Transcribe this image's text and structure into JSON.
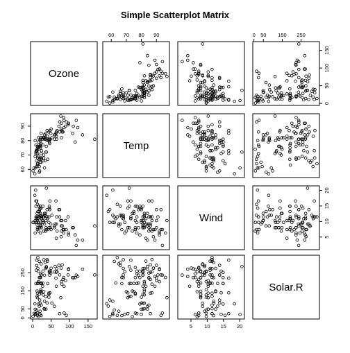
{
  "chart_data": {
    "type": "scatter",
    "title": "Simple Scatterplot Matrix",
    "variables": [
      "Ozone",
      "Temp",
      "Wind",
      "Solar.R"
    ],
    "ranges": {
      "Ozone": [
        1,
        168
      ],
      "Temp": [
        56,
        97
      ],
      "Wind": [
        1.7,
        20.7
      ],
      "Solar.R": [
        7,
        334
      ]
    },
    "ticks": {
      "Ozone": [
        0,
        50,
        100,
        150
      ],
      "Temp": [
        60,
        70,
        80,
        90
      ],
      "Wind": [
        5,
        10,
        15,
        20
      ],
      "Solar.R": [
        0,
        50,
        150,
        250
      ]
    },
    "tick_labels": {
      "Ozone": [
        "0",
        "50",
        "100",
        "150"
      ],
      "Temp": [
        "60",
        "70",
        "80",
        "90"
      ],
      "Wind": [
        "5",
        "10",
        "15",
        "20"
      ],
      "Solar.R": [
        "0",
        "50",
        "150",
        "250"
      ]
    },
    "grid": false,
    "marker": "open-circle",
    "rows": [
      [
        41,
        67,
        7.4,
        190
      ],
      [
        36,
        72,
        8.0,
        118
      ],
      [
        12,
        74,
        12.6,
        149
      ],
      [
        18,
        62,
        11.5,
        313
      ],
      [
        28,
        66,
        14.9,
        null
      ],
      [
        23,
        65,
        8.6,
        299
      ],
      [
        19,
        59,
        13.8,
        99
      ],
      [
        8,
        61,
        20.1,
        19
      ],
      [
        16,
        69,
        9.7,
        256
      ],
      [
        11,
        66,
        9.2,
        290
      ],
      [
        14,
        68,
        10.9,
        274
      ],
      [
        18,
        58,
        13.2,
        65
      ],
      [
        14,
        64,
        11.5,
        334
      ],
      [
        34,
        66,
        12.0,
        307
      ],
      [
        6,
        57,
        18.4,
        78
      ],
      [
        30,
        68,
        11.5,
        322
      ],
      [
        11,
        62,
        9.7,
        44
      ],
      [
        1,
        59,
        9.7,
        8
      ],
      [
        11,
        73,
        16.6,
        320
      ],
      [
        4,
        61,
        9.7,
        25
      ],
      [
        32,
        61,
        12.0,
        92
      ],
      [
        23,
        67,
        12.0,
        13
      ],
      [
        45,
        81,
        14.9,
        252
      ],
      [
        115,
        79,
        5.7,
        223
      ],
      [
        37,
        76,
        7.4,
        279
      ],
      [
        29,
        82,
        9.7,
        127
      ],
      [
        71,
        90,
        13.8,
        291
      ],
      [
        39,
        87,
        11.5,
        323
      ],
      [
        23,
        82,
        8.0,
        148
      ],
      [
        21,
        77,
        14.9,
        191
      ],
      [
        37,
        72,
        20.7,
        284
      ],
      [
        20,
        65,
        9.2,
        37
      ],
      [
        12,
        73,
        11.5,
        120
      ],
      [
        13,
        76,
        10.3,
        137
      ],
      [
        135,
        84,
        4.0,
        269
      ],
      [
        49,
        85,
        9.2,
        248
      ],
      [
        32,
        81,
        9.2,
        236
      ],
      [
        64,
        83,
        4.6,
        175
      ],
      [
        40,
        83,
        10.9,
        314
      ],
      [
        77,
        88,
        5.1,
        276
      ],
      [
        97,
        92,
        6.3,
        267
      ],
      [
        97,
        92,
        5.7,
        272
      ],
      [
        85,
        89,
        7.4,
        175
      ],
      [
        10,
        73,
        10.9,
        264
      ],
      [
        27,
        81,
        10.3,
        175
      ],
      [
        7,
        80,
        10.3,
        48
      ],
      [
        48,
        81,
        8.0,
        260
      ],
      [
        35,
        82,
        12.6,
        274
      ],
      [
        61,
        84,
        9.2,
        285
      ],
      [
        79,
        87,
        10.3,
        187
      ],
      [
        63,
        85,
        16.6,
        220
      ],
      [
        16,
        74,
        6.9,
        7
      ],
      [
        80,
        86,
        8.6,
        294
      ],
      [
        108,
        85,
        8.0,
        223
      ],
      [
        20,
        81,
        8.6,
        81
      ],
      [
        52,
        82,
        12.0,
        82
      ],
      [
        82,
        86,
        7.4,
        213
      ],
      [
        50,
        88,
        7.4,
        275
      ],
      [
        64,
        86,
        9.2,
        253
      ],
      [
        59,
        81,
        8.0,
        254
      ],
      [
        39,
        80,
        13.8,
        83
      ],
      [
        9,
        77,
        11.5,
        24
      ],
      [
        16,
        79,
        14.9,
        77
      ],
      [
        78,
        82,
        8.6,
        null
      ],
      [
        35,
        85,
        6.9,
        null
      ],
      [
        66,
        87,
        6.9,
        255
      ],
      [
        122,
        89,
        4.0,
        229
      ],
      [
        89,
        90,
        10.3,
        207
      ],
      [
        110,
        90,
        8.0,
        222
      ],
      [
        44,
        86,
        11.5,
        137
      ],
      [
        28,
        82,
        11.5,
        192
      ],
      [
        65,
        81,
        11.5,
        273
      ],
      [
        22,
        82,
        9.7,
        157
      ],
      [
        59,
        84,
        8.6,
        64
      ],
      [
        23,
        85,
        11.5,
        71
      ],
      [
        31,
        82,
        11.5,
        51
      ],
      [
        44,
        80,
        9.7,
        115
      ],
      [
        21,
        77,
        6.3,
        244
      ],
      [
        9,
        72,
        14.9,
        190
      ],
      [
        45,
        79,
        14.3,
        259
      ],
      [
        168,
        81,
        8.6,
        238
      ],
      [
        73,
        86,
        11.5,
        24
      ],
      [
        76,
        97,
        10.3,
        112
      ],
      [
        118,
        94,
        2.3,
        237
      ],
      [
        84,
        96,
        6.3,
        224
      ],
      [
        85,
        94,
        7.4,
        27
      ],
      [
        96,
        91,
        11.5,
        238
      ],
      [
        78,
        92,
        6.9,
        201
      ],
      [
        73,
        93,
        13.8,
        238
      ],
      [
        91,
        93,
        7.4,
        14
      ],
      [
        47,
        87,
        16.6,
        139
      ],
      [
        32,
        84,
        12.6,
        49
      ],
      [
        20,
        80,
        14.3,
        20
      ],
      [
        23,
        78,
        8.0,
        193
      ],
      [
        21,
        75,
        12.6,
        145
      ],
      [
        24,
        73,
        10.9,
        191
      ],
      [
        44,
        81,
        8.0,
        131
      ],
      [
        21,
        76,
        14.9,
        223
      ],
      [
        28,
        77,
        9.7,
        259
      ],
      [
        9,
        71,
        16.6,
        24
      ],
      [
        13,
        71,
        8.0,
        112
      ],
      [
        46,
        78,
        13.8,
        237
      ],
      [
        18,
        67,
        11.5,
        224
      ],
      [
        13,
        76,
        7.4,
        27
      ],
      [
        24,
        68,
        10.9,
        238
      ],
      [
        16,
        82,
        9.7,
        201
      ],
      [
        13,
        64,
        15.5,
        14
      ],
      [
        23,
        71,
        14.3,
        139
      ],
      [
        36,
        81,
        10.3,
        49
      ],
      [
        7,
        69,
        6.3,
        20
      ],
      [
        14,
        63,
        10.9,
        193
      ],
      [
        30,
        70,
        6.9,
        145
      ],
      [
        14,
        75,
        13.2,
        191
      ],
      [
        18,
        76,
        8.0,
        131
      ],
      [
        20,
        68,
        12.0,
        223
      ]
    ]
  }
}
